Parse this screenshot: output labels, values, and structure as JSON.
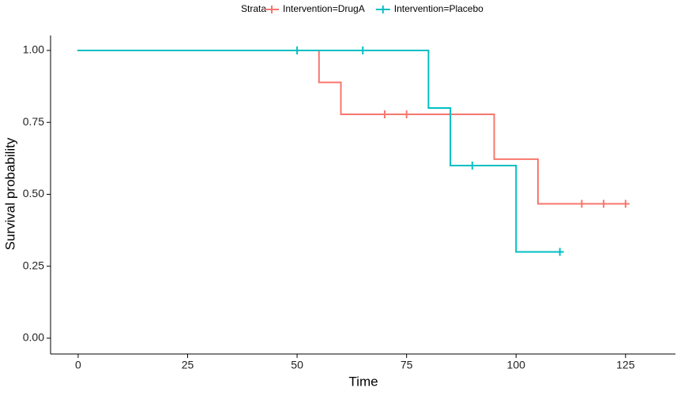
{
  "chart_data": {
    "type": "survival-step",
    "x_label": "Time",
    "y_label": "Survival probability",
    "legend_title": "Strata",
    "legend_position": "top",
    "xlim": [
      -6.3,
      136.4
    ],
    "ylim": [
      -0.055,
      1.052
    ],
    "xticks": [
      0,
      25,
      50,
      75,
      100,
      125
    ],
    "yticks": [
      {
        "value": 0,
        "label": "0.00"
      },
      0.25,
      {
        "value": 0.5,
        "label": "0.50"
      },
      0.75,
      {
        "value": 1,
        "label": "1.00"
      }
    ],
    "series": [
      {
        "name": "Intervention=DrugA",
        "color": "#F8766D",
        "x": [
          0,
          55,
          60,
          95,
          105,
          125
        ],
        "values": [
          1,
          0.889,
          0.778,
          0.622,
          0.467,
          0.467
        ],
        "censor_x": [
          70,
          75,
          115,
          120,
          125
        ],
        "censor_values": [
          0.778,
          0.778,
          0.467,
          0.467,
          0.467
        ]
      },
      {
        "name": "Intervention=Placebo",
        "color": "#00BFC4",
        "x": [
          0,
          80,
          85,
          100,
          110
        ],
        "values": [
          1,
          0.8,
          0.6,
          0.3,
          0.3
        ],
        "censor_x": [
          50,
          65,
          90,
          110
        ],
        "censor_values": [
          1,
          1,
          0.6,
          0.3
        ]
      }
    ]
  }
}
